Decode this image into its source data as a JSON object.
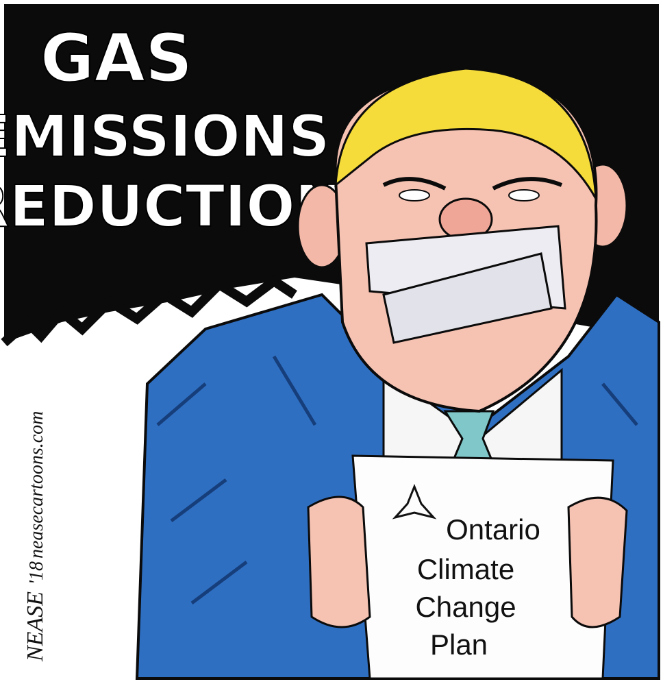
{
  "headline": [
    "GAS",
    "EMISSIONS",
    "REDUCTION"
  ],
  "document": {
    "org": "Ontario",
    "title": [
      "Climate",
      "Change",
      "Plan"
    ]
  },
  "signature": {
    "artist": "NEASE",
    "year": "'18",
    "website": "neasecartoons.com"
  }
}
